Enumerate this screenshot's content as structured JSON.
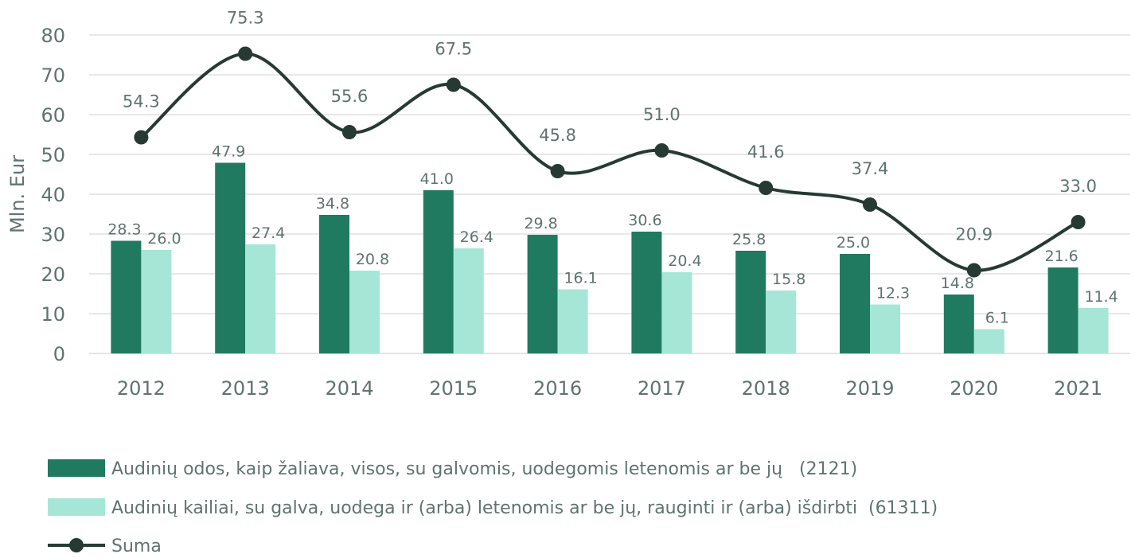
{
  "chart_data": {
    "type": "bar",
    "categories": [
      "2012",
      "2013",
      "2014",
      "2015",
      "2016",
      "2017",
      "2018",
      "2019",
      "2020",
      "2021"
    ],
    "ylabel": "Mln. Eur",
    "ylim": [
      0,
      80
    ],
    "yticks": [
      0,
      10,
      20,
      30,
      40,
      50,
      60,
      70,
      80
    ],
    "grid": true,
    "legend_position": "bottom",
    "series": [
      {
        "name": "Audinių odos, kaip žaliava, visos, su galvomis, uodegomis letenomis ar be jų   (2121)",
        "type": "bar",
        "color": "#1f7a60",
        "values": [
          28.3,
          47.9,
          34.8,
          41.0,
          29.8,
          30.6,
          25.8,
          25.0,
          14.8,
          21.6
        ],
        "labels": [
          "28.3",
          "47.9",
          "34.8",
          "41.0",
          "29.8",
          "30.6",
          "25.8",
          "25.0",
          "14.8",
          "21.6"
        ]
      },
      {
        "name": "Audinių kailiai, su galva, uodega ir (arba) letenomis ar be jų, rauginti ir (arba) išdirbti  (61311)",
        "type": "bar",
        "color": "#a6e6d6",
        "values": [
          26.0,
          27.4,
          20.8,
          26.4,
          16.1,
          20.4,
          15.8,
          12.3,
          6.1,
          11.4
        ],
        "labels": [
          "26.0",
          "27.4",
          "20.8",
          "26.4",
          "16.1",
          "20.4",
          "15.8",
          "12.3",
          "6.1",
          "11.4"
        ]
      },
      {
        "name": "Suma",
        "type": "line",
        "color": "#263a33",
        "values": [
          54.3,
          75.3,
          55.6,
          67.5,
          45.8,
          51.0,
          41.6,
          37.4,
          20.9,
          33.0
        ],
        "labels": [
          "54.3",
          "75.3",
          "55.6",
          "67.5",
          "45.8",
          "51.0",
          "41.6",
          "37.4",
          "20.9",
          "33.0"
        ]
      }
    ]
  }
}
